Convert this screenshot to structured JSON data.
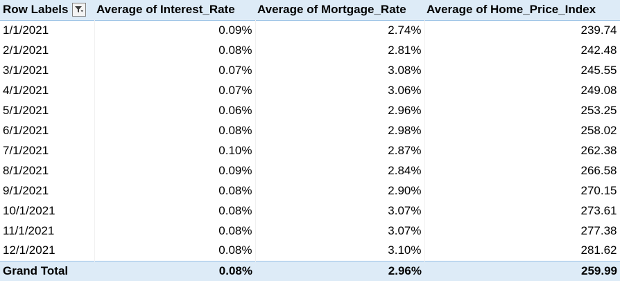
{
  "pivot": {
    "headers": {
      "row_labels": "Row Labels",
      "col1": "Average of Interest_Rate",
      "col2": "Average of Mortgage_Rate",
      "col3": "Average of Home_Price_Index"
    },
    "rows": [
      {
        "label": "1/1/2021",
        "interest": "0.09%",
        "mortgage": "2.74%",
        "hpi": "239.74"
      },
      {
        "label": "2/1/2021",
        "interest": "0.08%",
        "mortgage": "2.81%",
        "hpi": "242.48"
      },
      {
        "label": "3/1/2021",
        "interest": "0.07%",
        "mortgage": "3.08%",
        "hpi": "245.55"
      },
      {
        "label": "4/1/2021",
        "interest": "0.07%",
        "mortgage": "3.06%",
        "hpi": "249.08"
      },
      {
        "label": "5/1/2021",
        "interest": "0.06%",
        "mortgage": "2.96%",
        "hpi": "253.25"
      },
      {
        "label": "6/1/2021",
        "interest": "0.08%",
        "mortgage": "2.98%",
        "hpi": "258.02"
      },
      {
        "label": "7/1/2021",
        "interest": "0.10%",
        "mortgage": "2.87%",
        "hpi": "262.38"
      },
      {
        "label": "8/1/2021",
        "interest": "0.09%",
        "mortgage": "2.84%",
        "hpi": "266.58"
      },
      {
        "label": "9/1/2021",
        "interest": "0.08%",
        "mortgage": "2.90%",
        "hpi": "270.15"
      },
      {
        "label": "10/1/2021",
        "interest": "0.08%",
        "mortgage": "3.07%",
        "hpi": "273.61"
      },
      {
        "label": "11/1/2021",
        "interest": "0.08%",
        "mortgage": "3.07%",
        "hpi": "277.38"
      },
      {
        "label": "12/1/2021",
        "interest": "0.08%",
        "mortgage": "3.10%",
        "hpi": "281.62"
      }
    ],
    "total": {
      "label": "Grand Total",
      "interest": "0.08%",
      "mortgage": "2.96%",
      "hpi": "259.99"
    },
    "colors": {
      "header_fill": "#ddebf7",
      "total_fill": "#ddebf7",
      "border_accent": "#9bc2e6"
    },
    "icons": {
      "filter": "filter-dropdown-icon"
    }
  }
}
